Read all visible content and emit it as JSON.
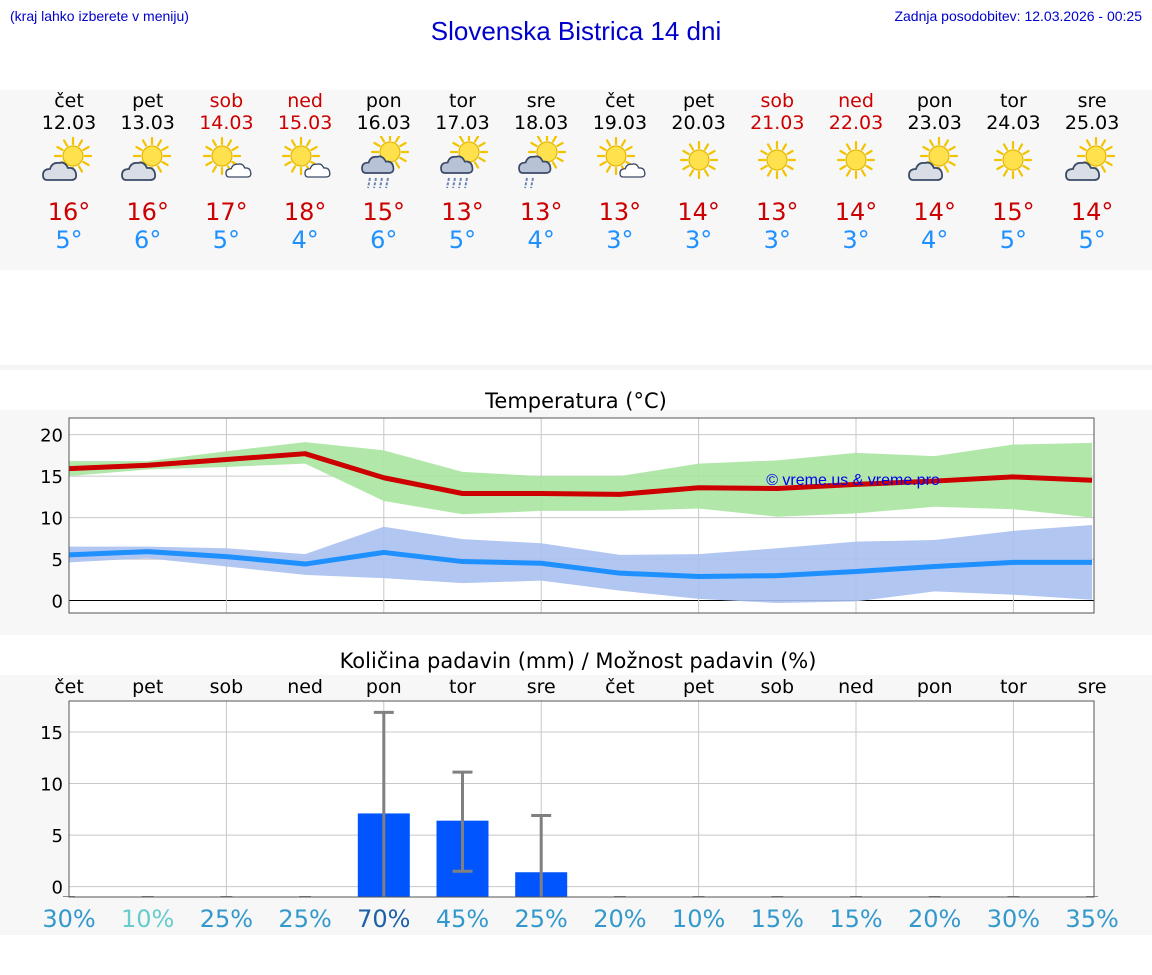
{
  "header": {
    "note": "(kraj lahko izberete v meniju)",
    "title": "Slovenska Bistrica 14 dni",
    "updated": "Zadnja posodobitev: 12.03.2026 - 00:25"
  },
  "days": [
    {
      "name": "čet",
      "date": "12.03",
      "weekend": false,
      "icon": "sun-cloud-icon",
      "tmax": "16°",
      "tmin": "5°"
    },
    {
      "name": "pet",
      "date": "13.03",
      "weekend": false,
      "icon": "sun-cloud-icon",
      "tmax": "16°",
      "tmin": "6°"
    },
    {
      "name": "sob",
      "date": "14.03",
      "weekend": true,
      "icon": "sun-small-cloud-icon",
      "tmax": "17°",
      "tmin": "5°"
    },
    {
      "name": "ned",
      "date": "15.03",
      "weekend": true,
      "icon": "sun-small-cloud-icon",
      "tmax": "18°",
      "tmin": "4°"
    },
    {
      "name": "pon",
      "date": "16.03",
      "weekend": false,
      "icon": "sun-rain-icon",
      "tmax": "15°",
      "tmin": "6°"
    },
    {
      "name": "tor",
      "date": "17.03",
      "weekend": false,
      "icon": "sun-rain-icon",
      "tmax": "13°",
      "tmin": "5°"
    },
    {
      "name": "sre",
      "date": "18.03",
      "weekend": false,
      "icon": "sun-light-rain-icon",
      "tmax": "13°",
      "tmin": "4°"
    },
    {
      "name": "čet",
      "date": "19.03",
      "weekend": false,
      "icon": "sun-small-cloud-icon",
      "tmax": "13°",
      "tmin": "3°"
    },
    {
      "name": "pet",
      "date": "20.03",
      "weekend": false,
      "icon": "sun-icon",
      "tmax": "14°",
      "tmin": "3°"
    },
    {
      "name": "sob",
      "date": "21.03",
      "weekend": true,
      "icon": "sun-icon",
      "tmax": "13°",
      "tmin": "3°"
    },
    {
      "name": "ned",
      "date": "22.03",
      "weekend": true,
      "icon": "sun-icon",
      "tmax": "14°",
      "tmin": "3°"
    },
    {
      "name": "pon",
      "date": "23.03",
      "weekend": false,
      "icon": "sun-cloud-icon",
      "tmax": "14°",
      "tmin": "4°"
    },
    {
      "name": "tor",
      "date": "24.03",
      "weekend": false,
      "icon": "sun-icon",
      "tmax": "15°",
      "tmin": "5°"
    },
    {
      "name": "sre",
      "date": "25.03",
      "weekend": false,
      "icon": "sun-cloud-icon",
      "tmax": "14°",
      "tmin": "5°"
    }
  ],
  "colors": {
    "title": "#0000cc",
    "max": "#cc0000",
    "min": "#1e90ff",
    "maxBand": "#a8e6a0",
    "minBand": "#a8c0f0",
    "bar": "#0055ff",
    "errbar": "#808080"
  },
  "chart_data": [
    {
      "type": "line",
      "title": "Temperatura (°C)",
      "watermark": "© vreme.us & vreme.pro",
      "ylim": [
        -1.5,
        22
      ],
      "yticks": [
        0,
        5,
        10,
        15,
        20
      ],
      "x": [
        0,
        1,
        2,
        3,
        4,
        5,
        6,
        7,
        8,
        9,
        10,
        11,
        12,
        13
      ],
      "series": [
        {
          "name": "max",
          "values": [
            15.9,
            16.3,
            17.0,
            17.7,
            14.8,
            12.9,
            12.9,
            12.8,
            13.6,
            13.5,
            14.0,
            14.4,
            14.9,
            14.5
          ]
        },
        {
          "name": "min",
          "values": [
            5.5,
            5.9,
            5.3,
            4.4,
            5.8,
            4.7,
            4.5,
            3.3,
            2.9,
            3.0,
            3.5,
            4.1,
            4.6,
            4.6
          ]
        }
      ],
      "bands": [
        {
          "name": "max-range",
          "upper": [
            16.8,
            16.8,
            18.0,
            19.1,
            18.1,
            15.5,
            15.0,
            15.0,
            16.5,
            16.9,
            17.8,
            17.4,
            18.8,
            19.0
          ],
          "lower": [
            15.0,
            15.8,
            16.1,
            16.5,
            12.0,
            10.4,
            10.8,
            10.8,
            11.1,
            10.1,
            10.5,
            11.3,
            11.0,
            10.0
          ]
        },
        {
          "name": "min-range",
          "upper": [
            6.5,
            6.5,
            6.3,
            5.6,
            8.9,
            7.4,
            6.9,
            5.5,
            5.6,
            6.3,
            7.1,
            7.3,
            8.4,
            9.1
          ],
          "lower": [
            4.6,
            5.1,
            4.1,
            3.1,
            2.7,
            2.1,
            2.4,
            1.2,
            0.2,
            -0.3,
            -0.1,
            1.1,
            0.7,
            0.1
          ]
        }
      ]
    },
    {
      "type": "bar",
      "title": "Količina padavin (mm) / Možnost padavin (%)",
      "categories": [
        "čet",
        "pet",
        "sob",
        "ned",
        "pon",
        "tor",
        "sre",
        "čet",
        "pet",
        "sob",
        "ned",
        "pon",
        "tor",
        "sre"
      ],
      "ylim": [
        -1,
        18
      ],
      "yticks": [
        0,
        5,
        10,
        15
      ],
      "values": [
        0,
        0,
        0,
        0,
        7.1,
        6.4,
        1.4,
        0,
        0,
        0,
        0,
        0,
        0,
        0
      ],
      "err_low": [
        0,
        0,
        0,
        0,
        0,
        1.5,
        0,
        0,
        0,
        0,
        0,
        0,
        0,
        0
      ],
      "err_high": [
        0,
        0,
        0,
        0,
        16.9,
        11.1,
        6.9,
        0,
        0,
        0,
        0,
        0,
        0,
        0
      ],
      "probability": [
        "30%",
        "10%",
        "25%",
        "25%",
        "70%",
        "45%",
        "25%",
        "20%",
        "10%",
        "15%",
        "15%",
        "20%",
        "30%",
        "35%"
      ],
      "probability_colors": [
        "#3399cc",
        "#66cccc",
        "#3399cc",
        "#3399cc",
        "#1a5fa8",
        "#3399cc",
        "#3399cc",
        "#3399cc",
        "#3399cc",
        "#3399cc",
        "#3399cc",
        "#3399cc",
        "#3399cc",
        "#3399cc"
      ]
    }
  ]
}
